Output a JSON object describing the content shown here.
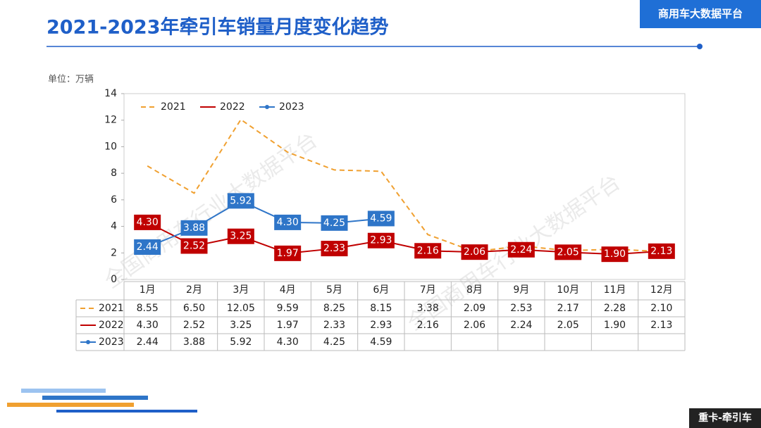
{
  "header": {
    "title": "2021-2023年牵引车销量月度变化趋势",
    "platform": "商用车大数据平台",
    "footer_tag": "重卡-牵引车",
    "watermark": "全国商用车行业大数据平台"
  },
  "chart_data": {
    "type": "line",
    "unit_label": "单位：万辆",
    "categories": [
      "1月",
      "2月",
      "3月",
      "4月",
      "5月",
      "6月",
      "7月",
      "8月",
      "9月",
      "10月",
      "11月",
      "12月"
    ],
    "ylim": [
      0,
      14
    ],
    "yticks": [
      0,
      2,
      4,
      6,
      8,
      10,
      12,
      14
    ],
    "series": [
      {
        "name": "2021",
        "color": "#f0a030",
        "style": "dashed",
        "values": [
          8.55,
          6.5,
          12.05,
          9.59,
          8.25,
          8.15,
          3.38,
          2.09,
          2.53,
          2.17,
          2.28,
          2.1
        ],
        "value_labels": [
          "8.55",
          "6.50",
          "12.05",
          "9.59",
          "8.25",
          "8.15",
          "3.38",
          "2.09",
          "2.53",
          "2.17",
          "2.28",
          "2.10"
        ]
      },
      {
        "name": "2022",
        "color": "#c00000",
        "style": "solid",
        "values": [
          4.3,
          2.52,
          3.25,
          1.97,
          2.33,
          2.93,
          2.16,
          2.06,
          2.24,
          2.05,
          1.9,
          2.13
        ],
        "value_labels": [
          "4.30",
          "2.52",
          "3.25",
          "1.97",
          "2.33",
          "2.93",
          "2.16",
          "2.06",
          "2.24",
          "2.05",
          "1.90",
          "2.13"
        ]
      },
      {
        "name": "2023",
        "color": "#2e75c8",
        "style": "markers",
        "values": [
          2.44,
          3.88,
          5.92,
          4.3,
          4.25,
          4.59,
          null,
          null,
          null,
          null,
          null,
          null
        ],
        "value_labels": [
          "2.44",
          "3.88",
          "5.92",
          "4.30",
          "4.25",
          "4.59",
          null,
          null,
          null,
          null,
          null,
          null
        ]
      }
    ]
  }
}
